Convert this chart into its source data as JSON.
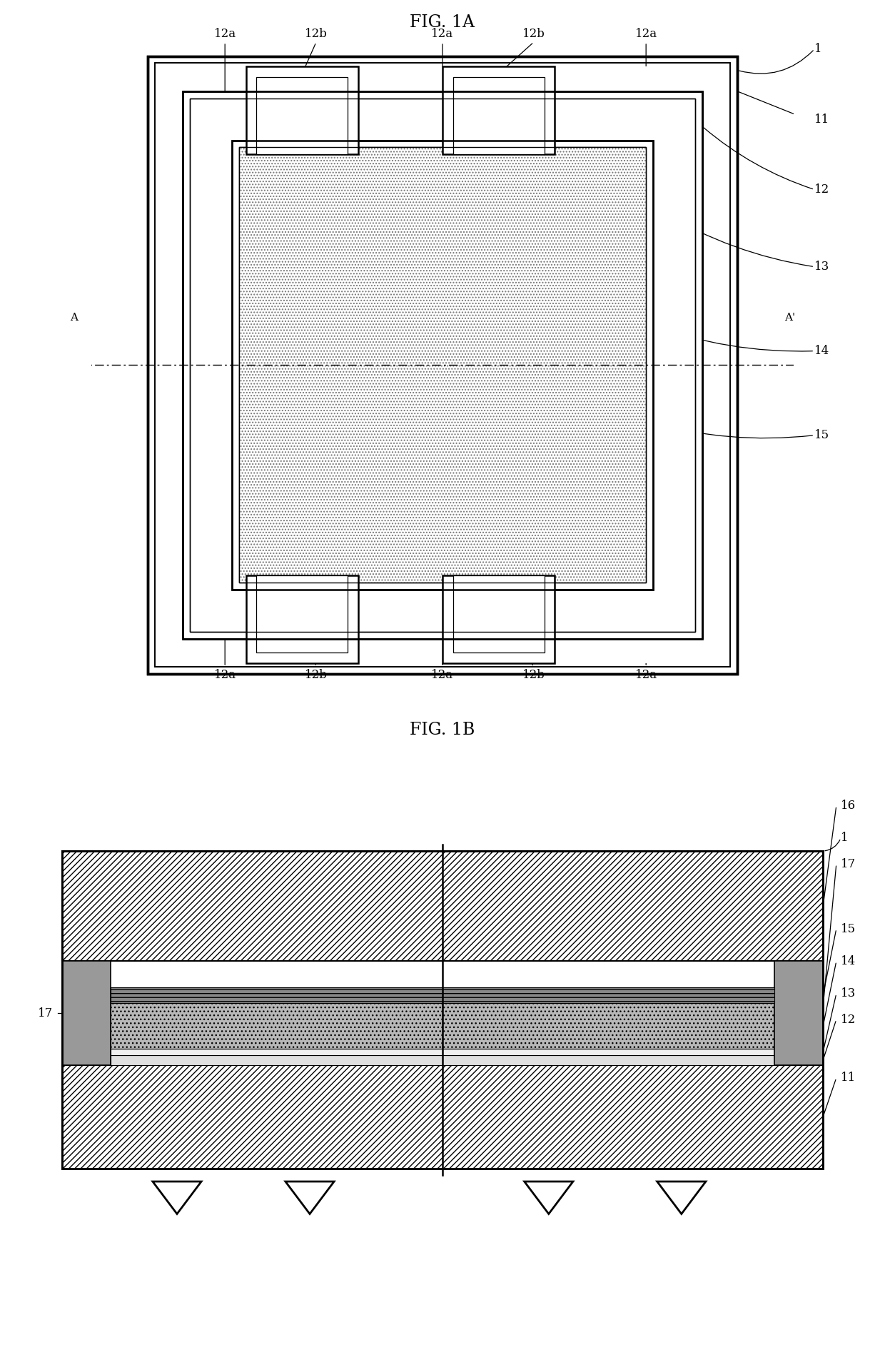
{
  "fig1a_title": "FIG. 1A",
  "fig1b_title": "FIG. 1B",
  "label_1": "1",
  "label_11": "11",
  "label_12": "12",
  "label_12a": "12a",
  "label_12b": "12b",
  "label_13": "13",
  "label_14": "14",
  "label_15": "15",
  "label_16": "16",
  "label_17": "17",
  "label_A": "A",
  "label_Ap": "A'",
  "font_size_title": 17,
  "font_size_label": 12,
  "bg_color": "#ffffff"
}
